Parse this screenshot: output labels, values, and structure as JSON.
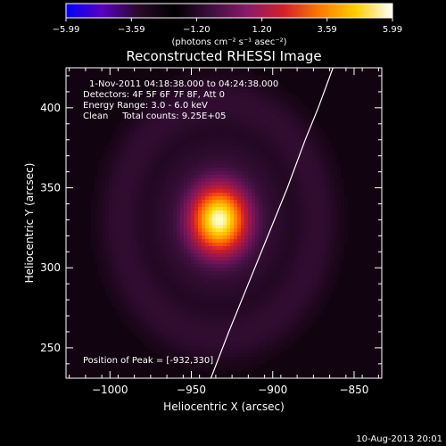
{
  "chart_data": {
    "type": "heatmap",
    "title": "Reconstructed RHESSI Image",
    "xlabel": "Heliocentric X (arcsec)",
    "ylabel": "Heliocentric Y (arcsec)",
    "xlim": [
      -1027,
      -833
    ],
    "ylim": [
      231,
      425
    ],
    "x_ticks": [
      -1000,
      -950,
      -900,
      -850
    ],
    "x_tick_labels": [
      "−1000",
      "−950",
      "−900",
      "−850"
    ],
    "y_ticks": [
      250,
      300,
      350,
      400
    ],
    "y_tick_labels": [
      "250",
      "300",
      "350",
      "400"
    ],
    "colorbar": {
      "range": [
        -5.99,
        5.99
      ],
      "tick_values": [
        -5.99,
        -3.59,
        -1.2,
        1.2,
        3.59,
        5.99
      ],
      "tick_labels": [
        "−5.99",
        "−3.59",
        "−1.20",
        "1.20",
        "3.59",
        "5.99"
      ],
      "unit_label": "(photons cm⁻² s⁻¹ asec⁻²)",
      "colors": [
        "#0000ff",
        "#5a00c0",
        "#2a0a2a",
        "#000000",
        "#3d103d",
        "#8a1a6a",
        "#d2202a",
        "#ff7a00",
        "#ffd000",
        "#ffffff"
      ]
    },
    "source": {
      "center": [
        -933,
        330
      ],
      "sigma": [
        14,
        17
      ],
      "peak": 5.99
    },
    "info_lines": [
      "1-Nov-2011 04:18:38.000 to 04:24:38.000",
      "Detectors: 4F 5F 6F 7F 8F, Att 0",
      "Energy Range: 3.0 - 6.0 keV",
      "Clean     Total counts: 9.25E+05"
    ],
    "peak_label": "Position of Peak = [-932,330]",
    "limb": {
      "points": [
        [
          -938,
          231
        ],
        [
          -927,
          260
        ],
        [
          -915,
          290
        ],
        [
          -903,
          320
        ],
        [
          -891,
          350
        ],
        [
          -880,
          380
        ],
        [
          -872,
          400
        ],
        [
          -863,
          425
        ]
      ]
    },
    "grid": false
  },
  "footer": {
    "date_label": "10-Aug-2013 20:01"
  }
}
